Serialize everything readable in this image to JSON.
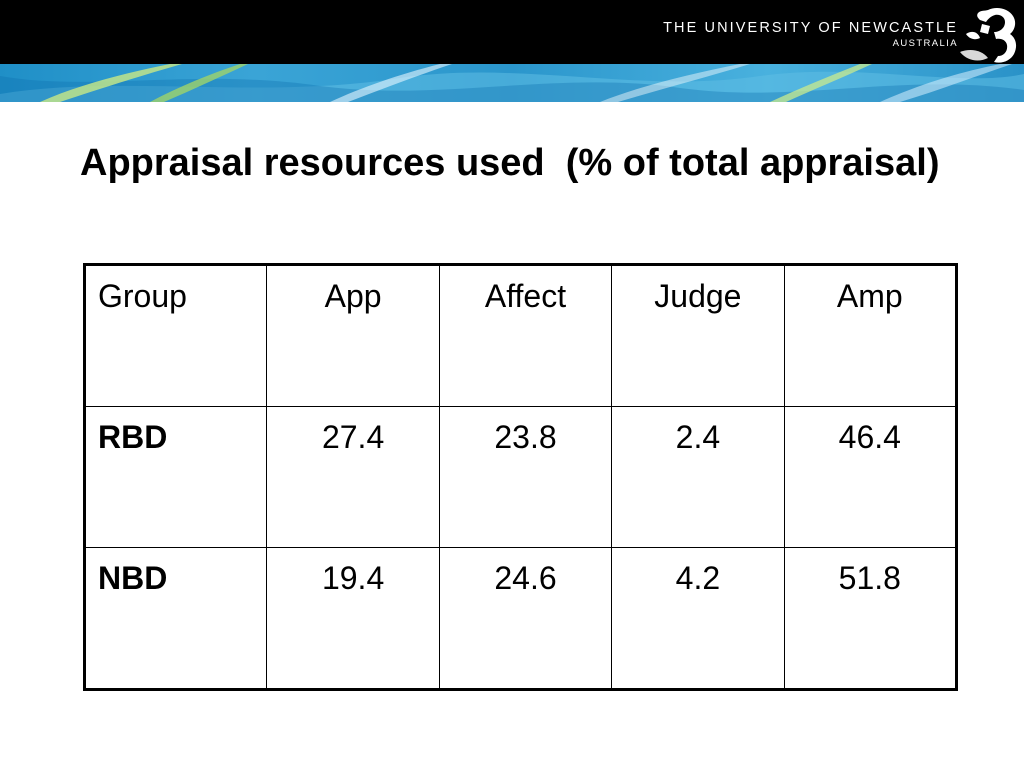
{
  "header": {
    "university_name": "THE UNIVERSITY OF NEWCASTLE",
    "country": "AUSTRALIA",
    "logo_icon": "seahorse-logo-icon",
    "bar_color": "#000000"
  },
  "slide": {
    "title": "Appraisal resources used  (% of total appraisal)"
  },
  "table": {
    "headers": [
      "Group",
      "App",
      "Affect",
      "Judge",
      "Amp"
    ],
    "rows": [
      {
        "group": "RBD",
        "values": [
          "27.4",
          "23.8",
          "2.4",
          "46.4"
        ]
      },
      {
        "group": "NBD",
        "values": [
          "19.4",
          "24.6",
          "4.2",
          "51.8"
        ]
      }
    ]
  }
}
